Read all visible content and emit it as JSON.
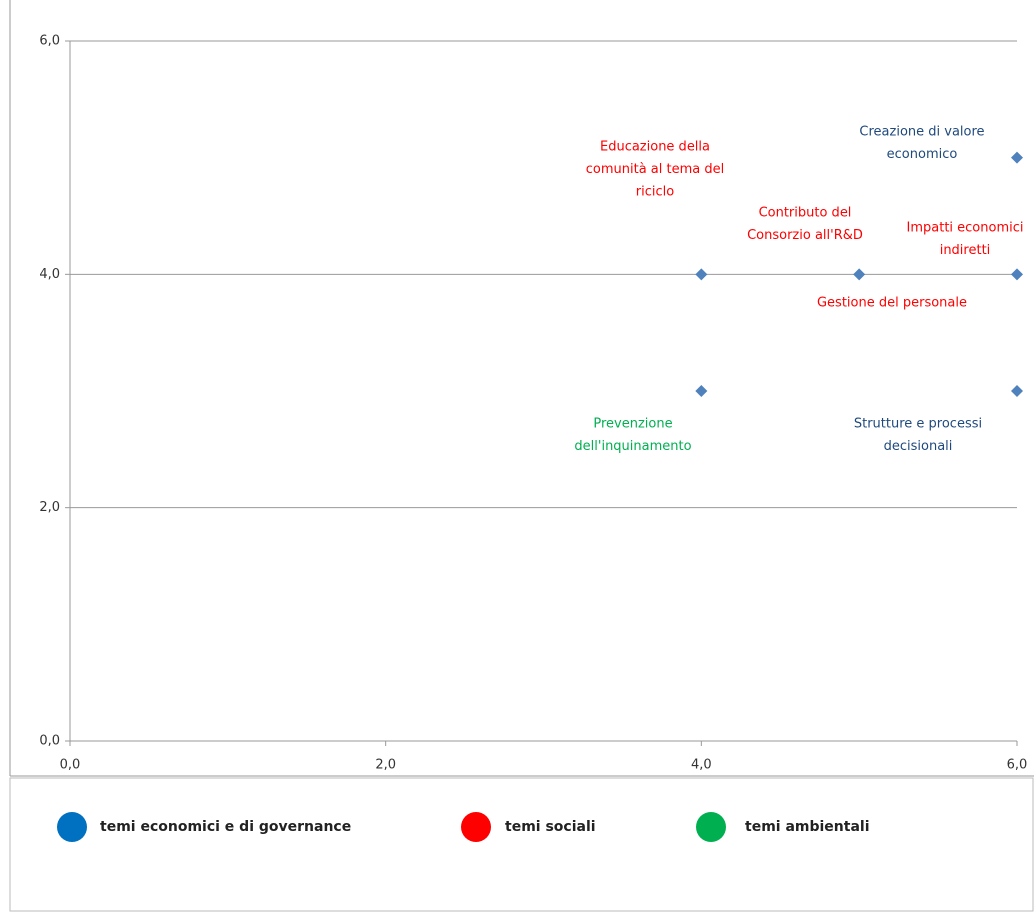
{
  "chart_data": {
    "type": "scatter",
    "x": [
      4,
      5,
      6,
      4,
      6,
      6
    ],
    "values": [
      4,
      4,
      4,
      3,
      3,
      5
    ],
    "color": "#4f81bd",
    "xlim": [
      0,
      6
    ],
    "ylim": [
      0,
      6
    ],
    "xticks": [
      {
        "value": 0,
        "label": "0,0"
      },
      {
        "value": 2,
        "label": "2,0"
      },
      {
        "value": 4,
        "label": "4,0"
      },
      {
        "value": 6,
        "label": "6,0"
      }
    ],
    "yticks": [
      {
        "value": 0,
        "label": "0,0"
      },
      {
        "value": 2,
        "label": "2,0"
      },
      {
        "value": 4,
        "label": "4,0"
      },
      {
        "value": 6,
        "label": "6,0"
      }
    ],
    "grid": true,
    "annotations": [
      {
        "text": [
          "Educazione della",
          "comunità al tema del",
          "riciclo"
        ],
        "color": "#ff0000"
      },
      {
        "text": [
          "Creazione di valore",
          "economico"
        ],
        "color": "#1f497d"
      },
      {
        "text": [
          "Contributo del",
          "Consorzio all'R&D"
        ],
        "color": "#ff0000"
      },
      {
        "text": [
          "Impatti economici",
          "indiretti"
        ],
        "color": "#ff0000"
      },
      {
        "text": [
          "Gestione del personale"
        ],
        "color": "#ff0000"
      },
      {
        "text": [
          "Prevenzione",
          "dell'inquinamento"
        ],
        "color": "#00b050"
      },
      {
        "text": [
          "Strutture e processi",
          "decisionali"
        ],
        "color": "#1f497d"
      }
    ],
    "legend": [
      {
        "name": "temi economici e di governance",
        "color": "#0070c0"
      },
      {
        "name": "temi sociali",
        "color": "#ff0000"
      },
      {
        "name": "temi ambientali",
        "color": "#00b050"
      }
    ]
  }
}
